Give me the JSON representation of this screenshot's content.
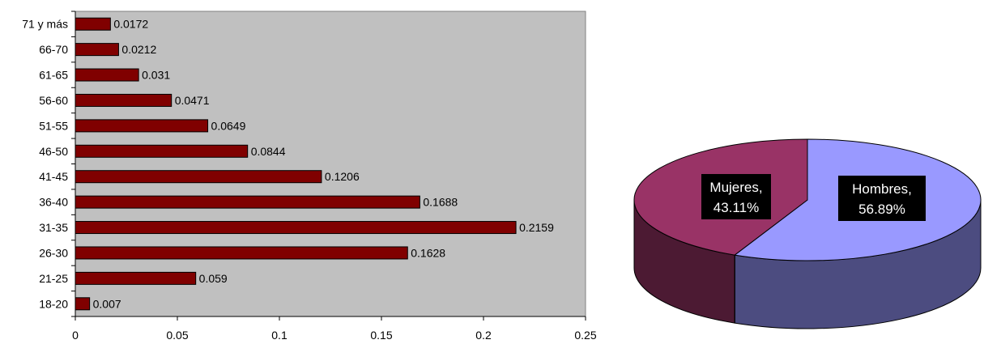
{
  "chart_data": [
    {
      "type": "bar",
      "orientation": "horizontal",
      "categories": [
        "18-20",
        "21-25",
        "26-30",
        "31-35",
        "36-40",
        "41-45",
        "46-50",
        "51-55",
        "56-60",
        "61-65",
        "66-70",
        "71 y más"
      ],
      "values": [
        0.007,
        0.059,
        0.1628,
        0.2159,
        0.1688,
        0.1206,
        0.0844,
        0.0649,
        0.0471,
        0.031,
        0.0212,
        0.0172
      ],
      "data_labels": [
        "0.007",
        "0.059",
        "0.1628",
        "0.2159",
        "0.1688",
        "0.1206",
        "0.0844",
        "0.0649",
        "0.0471",
        "0.031",
        "0.0212",
        "0.0172"
      ],
      "x_ticks": [
        "0",
        "0.05",
        "0.1",
        "0.15",
        "0.2",
        "0.25"
      ],
      "xlim": [
        0,
        0.25
      ],
      "grid": false,
      "legend": "none",
      "colors": {
        "bar": "#800000",
        "plot_bg": "#c0c0c0"
      }
    },
    {
      "type": "pie",
      "style": "3d",
      "slices": [
        {
          "name": "Hombres",
          "value": 56.89,
          "label_line1": "Hombres,",
          "label_line2": "56.89%",
          "color": "#9999ff",
          "side_color": "#4c4c80"
        },
        {
          "name": "Mujeres",
          "value": 43.11,
          "label_line1": "Mujeres,",
          "label_line2": "43.11%",
          "color": "#993366",
          "side_color": "#4c1a33"
        }
      ],
      "legend": "none"
    }
  ]
}
